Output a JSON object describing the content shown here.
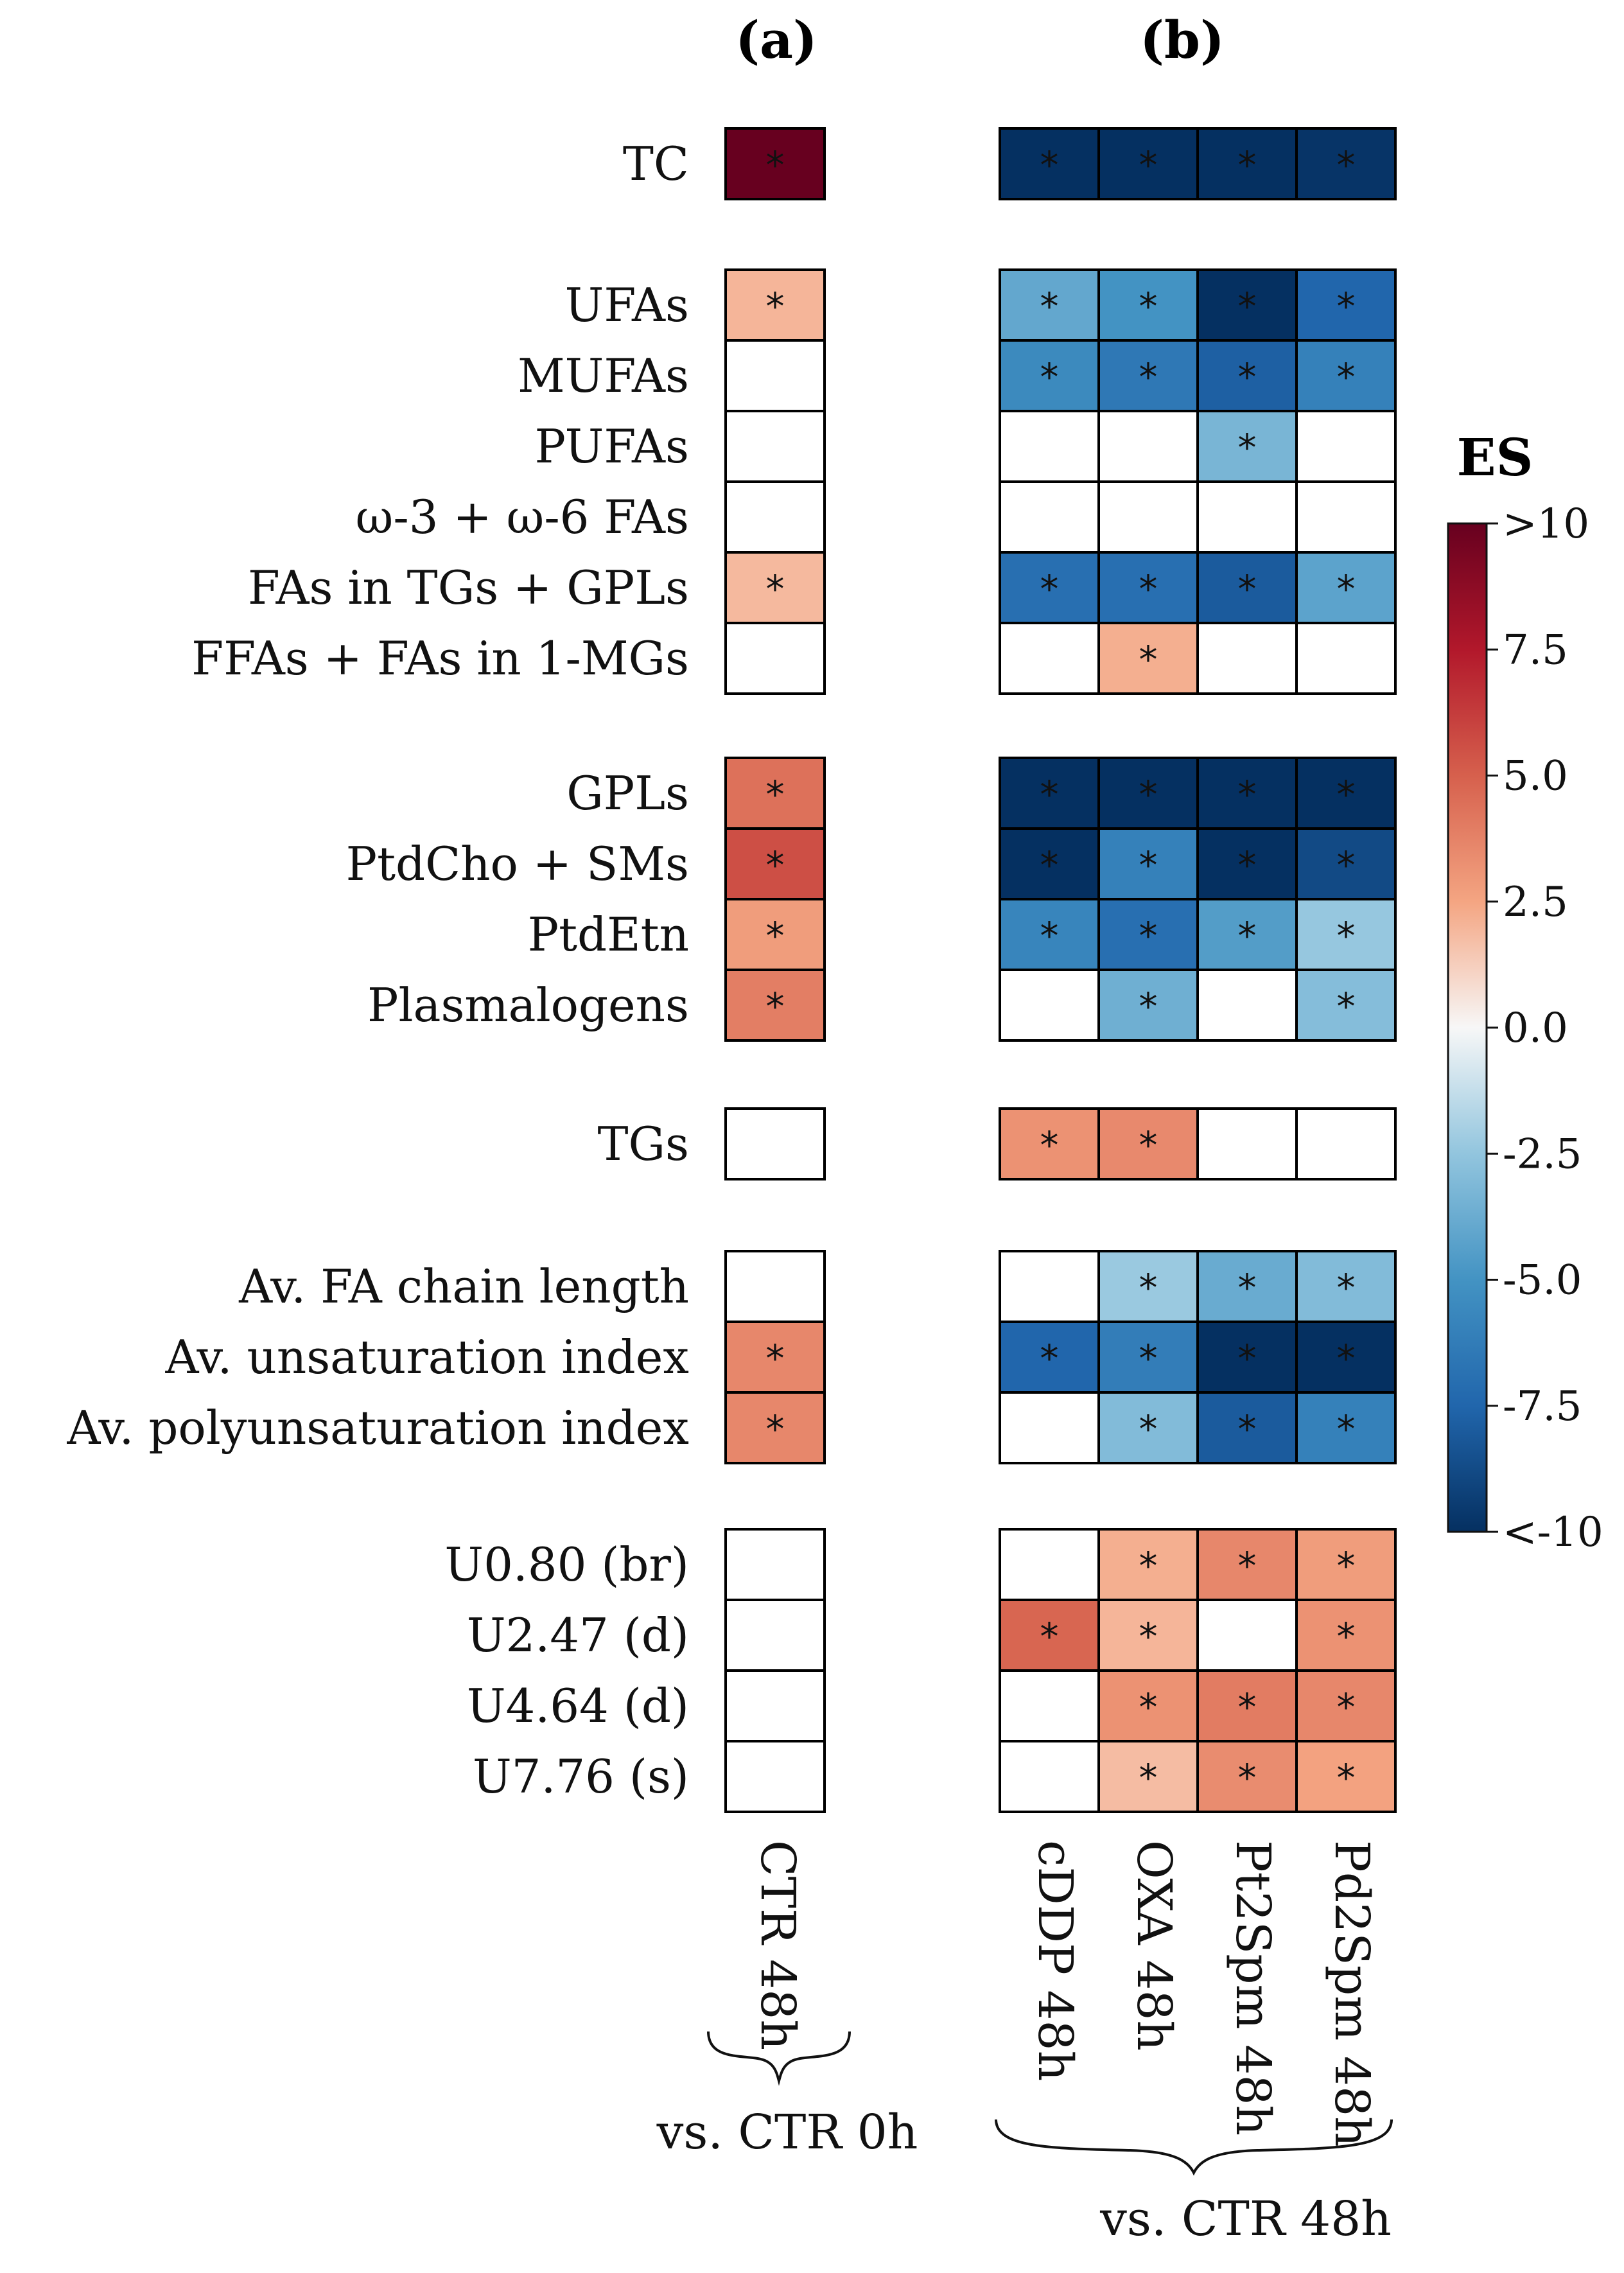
{
  "chart_data": {
    "type": "heatmap",
    "title": "",
    "panels": [
      {
        "label": "(a)",
        "columns": [
          "CTR 48h"
        ],
        "comparison": "vs. CTR 0h"
      },
      {
        "label": "(b)",
        "columns": [
          "cDDP 48h",
          "OXA 48h",
          "Pt2Spm 48h",
          "Pd2Spm 48h"
        ],
        "comparison": "vs. CTR 48h"
      }
    ],
    "groups": [
      [
        {
          "label": "TC",
          "a": {
            "v": 11,
            "s": true
          },
          "b": [
            {
              "v": -10,
              "s": true
            },
            {
              "v": -10,
              "s": true
            },
            {
              "v": -10,
              "s": true
            },
            {
              "v": -9.8,
              "s": true
            }
          ]
        }
      ],
      [
        {
          "label": "UFAs",
          "a": {
            "v": 2.0,
            "s": true
          },
          "b": [
            {
              "v": -4.0,
              "s": true
            },
            {
              "v": -5.0,
              "s": true
            },
            {
              "v": -10,
              "s": true
            },
            {
              "v": -7.5,
              "s": true
            }
          ]
        },
        {
          "label": "MUFAs",
          "a": {
            "v": 0,
            "s": false
          },
          "b": [
            {
              "v": -5.5,
              "s": true
            },
            {
              "v": -6.5,
              "s": true
            },
            {
              "v": -7.8,
              "s": true
            },
            {
              "v": -6.0,
              "s": true
            }
          ]
        },
        {
          "label": "PUFAs",
          "a": {
            "v": 0,
            "s": false
          },
          "b": [
            {
              "v": 0,
              "s": false
            },
            {
              "v": 0,
              "s": false
            },
            {
              "v": -3.3,
              "s": true
            },
            {
              "v": 0,
              "s": false
            }
          ]
        },
        {
          "label": "ω-3 + ω-6 FAs",
          "a": {
            "v": 0,
            "s": false
          },
          "b": [
            {
              "v": 0,
              "s": false
            },
            {
              "v": 0,
              "s": false
            },
            {
              "v": 0,
              "s": false
            },
            {
              "v": 0,
              "s": false
            }
          ]
        },
        {
          "label": "FAs in TGs + GPLs",
          "a": {
            "v": 1.9,
            "s": true
          },
          "b": [
            {
              "v": -7.0,
              "s": true
            },
            {
              "v": -7.0,
              "s": true
            },
            {
              "v": -8.0,
              "s": true
            },
            {
              "v": -4.2,
              "s": true
            }
          ]
        },
        {
          "label": "FFAs + FAs in 1-MGs",
          "a": {
            "v": 0,
            "s": false
          },
          "b": [
            {
              "v": 0,
              "s": false
            },
            {
              "v": 2.2,
              "s": true
            },
            {
              "v": 0,
              "s": false
            },
            {
              "v": 0,
              "s": false
            }
          ]
        }
      ],
      [
        {
          "label": "GPLs",
          "a": {
            "v": 4.4,
            "s": true
          },
          "b": [
            {
              "v": -10,
              "s": true
            },
            {
              "v": -10,
              "s": true
            },
            {
              "v": -10,
              "s": true
            },
            {
              "v": -10,
              "s": true
            }
          ]
        },
        {
          "label": "PtdCho + SMs",
          "a": {
            "v": 5.6,
            "s": true
          },
          "b": [
            {
              "v": -10,
              "s": true
            },
            {
              "v": -6.0,
              "s": true
            },
            {
              "v": -10,
              "s": true
            },
            {
              "v": -8.8,
              "s": true
            }
          ]
        },
        {
          "label": "PtdEtn",
          "a": {
            "v": 2.8,
            "s": true
          },
          "b": [
            {
              "v": -5.8,
              "s": true
            },
            {
              "v": -7.0,
              "s": true
            },
            {
              "v": -4.5,
              "s": true
            },
            {
              "v": -2.4,
              "s": true
            }
          ]
        },
        {
          "label": "Plasmalogens",
          "a": {
            "v": 3.9,
            "s": true
          },
          "b": [
            {
              "v": 0,
              "s": false
            },
            {
              "v": -3.6,
              "s": true
            },
            {
              "v": 0,
              "s": false
            },
            {
              "v": -2.9,
              "s": true
            }
          ]
        }
      ],
      [
        {
          "label": "TGs",
          "a": {
            "v": 0,
            "s": false
          },
          "b": [
            {
              "v": 3.2,
              "s": true
            },
            {
              "v": 3.5,
              "s": true
            },
            {
              "v": 0,
              "s": false
            },
            {
              "v": 0,
              "s": false
            }
          ]
        }
      ],
      [
        {
          "label": "Av. FA chain length",
          "a": {
            "v": 0,
            "s": false
          },
          "b": [
            {
              "v": 0,
              "s": false
            },
            {
              "v": -2.3,
              "s": true
            },
            {
              "v": -3.8,
              "s": true
            },
            {
              "v": -3.0,
              "s": true
            }
          ]
        },
        {
          "label": "Av. unsaturation index",
          "a": {
            "v": 3.6,
            "s": true
          },
          "b": [
            {
              "v": -7.5,
              "s": true
            },
            {
              "v": -6.2,
              "s": true
            },
            {
              "v": -10,
              "s": true
            },
            {
              "v": -10,
              "s": true
            }
          ]
        },
        {
          "label": "Av. polyunsaturation index",
          "a": {
            "v": 3.6,
            "s": true
          },
          "b": [
            {
              "v": 0,
              "s": false
            },
            {
              "v": -3.0,
              "s": true
            },
            {
              "v": -8.0,
              "s": true
            },
            {
              "v": -6.0,
              "s": true
            }
          ]
        }
      ],
      [
        {
          "label": "U0.80 (br)",
          "a": {
            "v": 0,
            "s": false
          },
          "b": [
            {
              "v": 0,
              "s": false
            },
            {
              "v": 2.2,
              "s": true
            },
            {
              "v": 3.6,
              "s": true
            },
            {
              "v": 2.8,
              "s": true
            }
          ]
        },
        {
          "label": "U2.47 (d)",
          "a": {
            "v": 0,
            "s": false
          },
          "b": [
            {
              "v": 4.8,
              "s": true
            },
            {
              "v": 2.0,
              "s": true
            },
            {
              "v": 0,
              "s": false
            },
            {
              "v": 3.2,
              "s": true
            }
          ]
        },
        {
          "label": "U4.64 (d)",
          "a": {
            "v": 0,
            "s": false
          },
          "b": [
            {
              "v": 0,
              "s": false
            },
            {
              "v": 3.2,
              "s": true
            },
            {
              "v": 4.0,
              "s": true
            },
            {
              "v": 3.6,
              "s": true
            }
          ]
        },
        {
          "label": "U7.76 (s)",
          "a": {
            "v": 0,
            "s": false
          },
          "b": [
            {
              "v": 0,
              "s": false
            },
            {
              "v": 1.8,
              "s": true
            },
            {
              "v": 3.4,
              "s": true
            },
            {
              "v": 2.6,
              "s": true
            }
          ]
        }
      ]
    ],
    "colorbar": {
      "title": "ES",
      "range": [
        -10,
        10
      ],
      "tick_values": [
        10,
        7.5,
        5.0,
        2.5,
        0.0,
        -2.5,
        -5.0,
        -7.5,
        -10
      ],
      "tick_labels": [
        ">10",
        "7.5",
        "5.0",
        "2.5",
        "0.0",
        "-2.5",
        "-5.0",
        "-7.5",
        "<-10"
      ],
      "colors": [
        "#a50026",
        "#d73027",
        "#f46d43",
        "#fdae61",
        "#fee090",
        "#ffffbf"
      ],
      "cmap": "RdBu_r"
    },
    "significance_marker": "*",
    "legend": "right"
  }
}
